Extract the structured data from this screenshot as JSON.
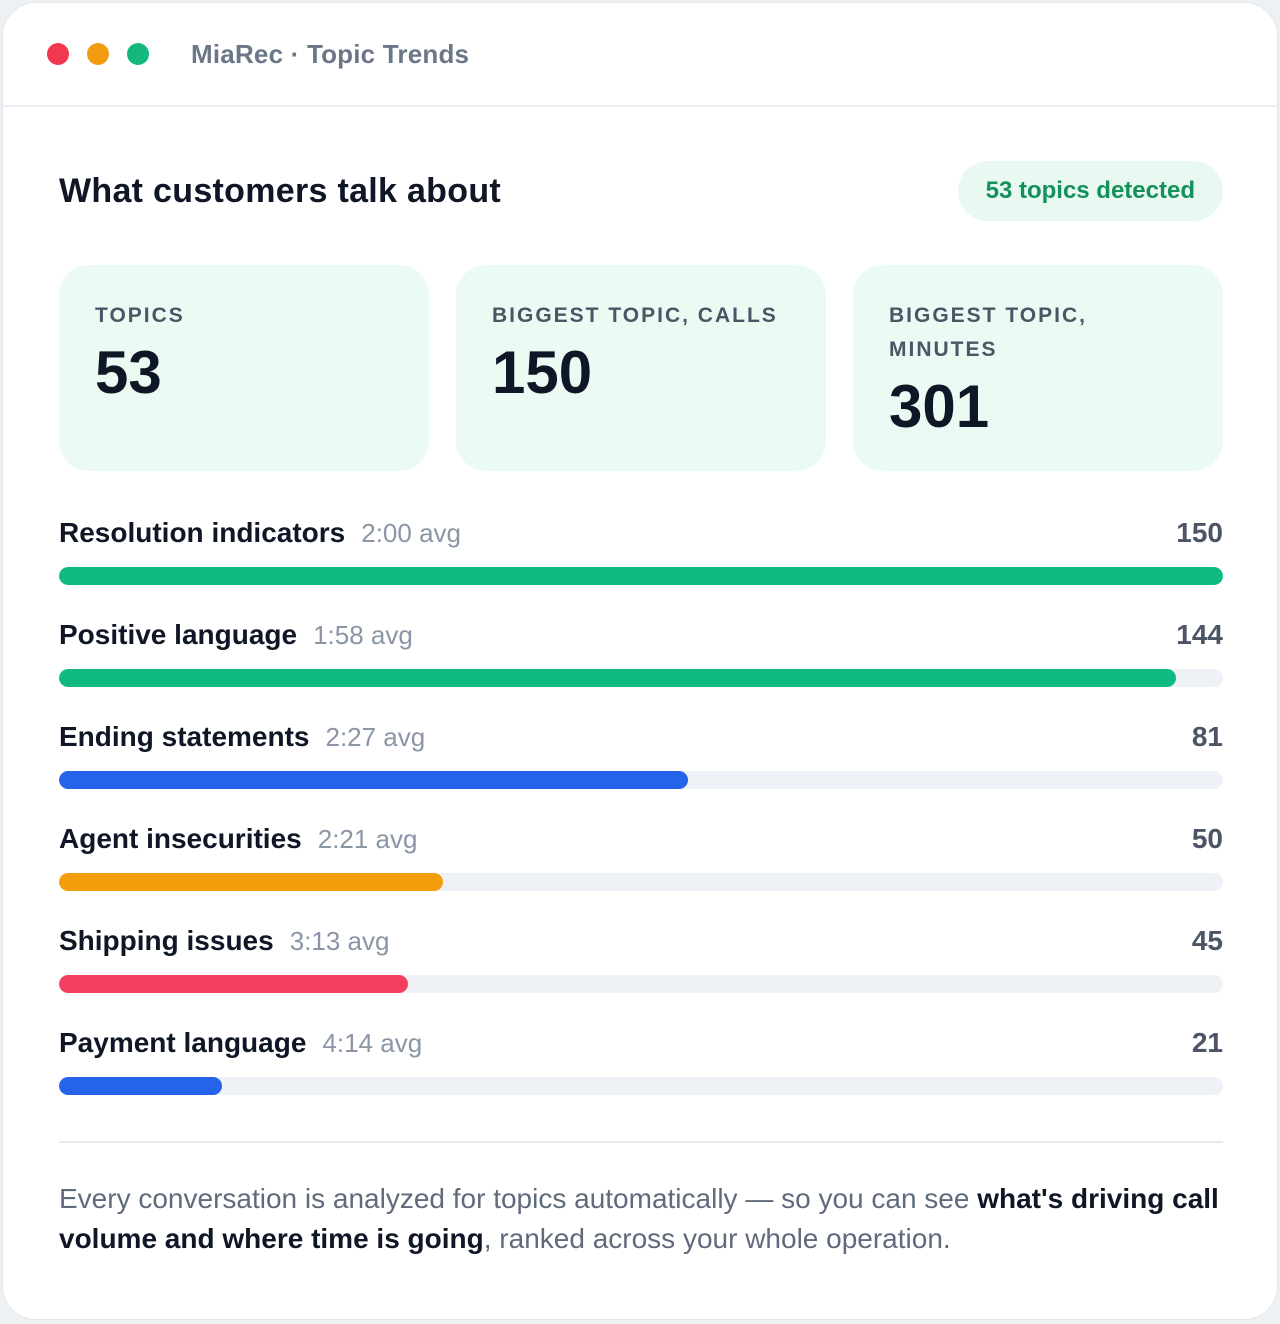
{
  "window": {
    "title": "MiaRec · Topic Trends",
    "controls": [
      {
        "name": "close",
        "color": "#f0384f"
      },
      {
        "name": "minimize",
        "color": "#f39c12"
      },
      {
        "name": "maximize",
        "color": "#14b87a"
      }
    ]
  },
  "header": {
    "title": "What customers talk about",
    "badge": "53 topics detected"
  },
  "stats": [
    {
      "label": "TOPICS",
      "value": "53"
    },
    {
      "label": "BIGGEST TOPIC, CALLS",
      "value": "150"
    },
    {
      "label": "BIGGEST TOPIC, MINUTES",
      "value": "301"
    }
  ],
  "topics": [
    {
      "name": "Resolution indicators",
      "avg": "2:00 avg",
      "count": "150",
      "fraction": 1.0,
      "color": "#10b981"
    },
    {
      "name": "Positive language",
      "avg": "1:58 avg",
      "count": "144",
      "fraction": 0.96,
      "color": "#10b981"
    },
    {
      "name": "Ending statements",
      "avg": "2:27 avg",
      "count": "81",
      "fraction": 0.54,
      "color": "#2563eb"
    },
    {
      "name": "Agent insecurities",
      "avg": "2:21 avg",
      "count": "50",
      "fraction": 0.33,
      "color": "#f59e0b"
    },
    {
      "name": "Shipping issues",
      "avg": "3:13 avg",
      "count": "45",
      "fraction": 0.3,
      "color": "#f43f5e"
    },
    {
      "name": "Payment language",
      "avg": "4:14 avg",
      "count": "21",
      "fraction": 0.14,
      "color": "#2563eb"
    }
  ],
  "footer": {
    "text_before": "Every conversation is analyzed for topics automatically — so you can see ",
    "text_bold": "what's driving call volume and where time is going",
    "text_after": ", ranked across your whole operation."
  }
}
